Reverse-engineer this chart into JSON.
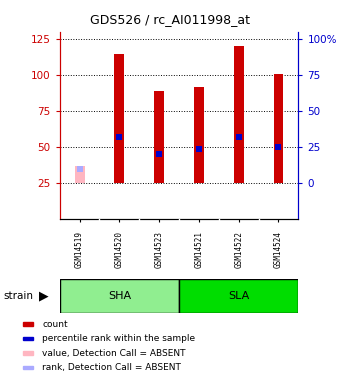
{
  "title": "GDS526 / rc_AI011998_at",
  "samples": [
    "GSM14519",
    "GSM14520",
    "GSM14523",
    "GSM14521",
    "GSM14522",
    "GSM14524"
  ],
  "bar_values": [
    37,
    115,
    89,
    92,
    120,
    101
  ],
  "bar_colors": [
    "#FFB6C1",
    "#CC0000",
    "#CC0000",
    "#CC0000",
    "#CC0000",
    "#CC0000"
  ],
  "rank_values": [
    35,
    57,
    45,
    49,
    57,
    50
  ],
  "rank_colors": [
    "#AAAAFF",
    "#0000CC",
    "#0000CC",
    "#0000CC",
    "#0000CC",
    "#0000CC"
  ],
  "absent_flags": [
    true,
    false,
    false,
    false,
    false,
    false
  ],
  "sha_group": [
    0,
    1,
    2
  ],
  "sla_group": [
    3,
    4,
    5
  ],
  "sha_color": "#90EE90",
  "sla_color": "#00DD00",
  "gray_color": "#CCCCCC",
  "ylim": [
    0,
    130
  ],
  "baseline": 25,
  "yticks_left": [
    25,
    50,
    75,
    100,
    125
  ],
  "yticks_right": [
    0,
    25,
    50,
    75,
    100
  ],
  "yticks_right_labels": [
    "0",
    "25",
    "50",
    "75",
    "100%"
  ],
  "bar_width": 0.25,
  "bg_color": "#FFFFFF",
  "left_axis_color": "#CC0000",
  "right_axis_color": "#0000CC",
  "legend_items": [
    {
      "label": "count",
      "color": "#CC0000"
    },
    {
      "label": "percentile rank within the sample",
      "color": "#0000CC"
    },
    {
      "label": "value, Detection Call = ABSENT",
      "color": "#FFB6C1"
    },
    {
      "label": "rank, Detection Call = ABSENT",
      "color": "#AAAAFF"
    }
  ]
}
